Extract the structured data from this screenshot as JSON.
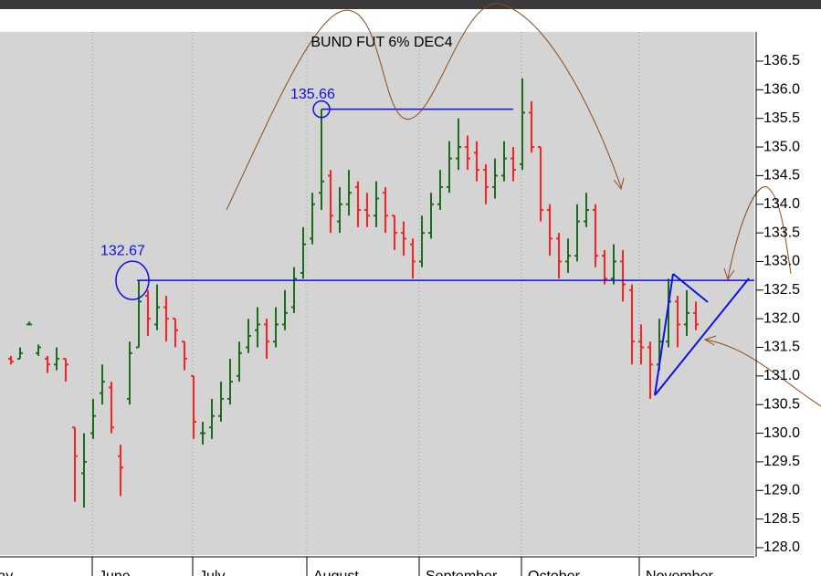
{
  "chart_data": {
    "type": "ohlc",
    "title": "BUND FUT 6% DEC4",
    "up_color": "#1a6e1a",
    "down_color": "#ff2020",
    "annotation_color": "#1010e0",
    "open": [
      131.3,
      131.3,
      131.9,
      131.4,
      131.3,
      131.2,
      131.3,
      130.1,
      129.3,
      130.0,
      130.7,
      130.8,
      129.6,
      130.6,
      131.5,
      132.4,
      131.9,
      132.2,
      132.0,
      131.6,
      131.0,
      130.0,
      130.1,
      130.3,
      130.6,
      131.0,
      131.5,
      131.8,
      131.9,
      131.6,
      131.9,
      132.2,
      132.8,
      133.4,
      134.2,
      134.5,
      133.7,
      134.0,
      134.3,
      133.9,
      133.8,
      134.2,
      133.8,
      133.5,
      133.3,
      133.0,
      133.5,
      134.0,
      134.3,
      134.8,
      135.0,
      134.9,
      134.6,
      134.3,
      134.5,
      134.8,
      134.7,
      135.6,
      135.0,
      133.9,
      133.4,
      133.0,
      133.1,
      133.7,
      133.9,
      133.1,
      132.7,
      133.0,
      132.5,
      131.6,
      131.5,
      131.2,
      131.6,
      132.3,
      131.9,
      132.1
    ],
    "high": [
      131.35,
      131.5,
      131.95,
      131.55,
      131.35,
      131.5,
      131.3,
      130.1,
      130.0,
      130.6,
      131.2,
      130.9,
      129.8,
      131.6,
      132.67,
      132.5,
      132.6,
      132.4,
      132.0,
      131.6,
      131.0,
      130.2,
      130.6,
      130.9,
      131.3,
      131.6,
      132.0,
      132.2,
      132.0,
      132.2,
      132.5,
      132.9,
      133.6,
      134.2,
      135.66,
      134.6,
      134.3,
      134.6,
      134.4,
      134.2,
      134.4,
      134.3,
      133.8,
      133.7,
      133.4,
      133.8,
      134.2,
      134.6,
      135.1,
      135.5,
      135.2,
      135.1,
      134.7,
      134.8,
      135.1,
      135.0,
      136.2,
      135.8,
      135.0,
      134.0,
      133.5,
      133.4,
      134.0,
      134.2,
      134.0,
      133.2,
      133.3,
      133.2,
      132.6,
      131.9,
      131.6,
      132.0,
      132.7,
      132.4,
      132.5,
      132.3
    ],
    "low": [
      131.2,
      131.3,
      131.9,
      131.35,
      131.05,
      131.1,
      130.9,
      128.8,
      128.7,
      129.9,
      130.5,
      130.0,
      128.9,
      130.5,
      131.5,
      131.7,
      131.8,
      131.6,
      131.5,
      131.1,
      129.9,
      129.8,
      129.9,
      130.2,
      130.5,
      130.9,
      131.4,
      131.5,
      131.3,
      131.5,
      131.8,
      132.1,
      132.7,
      133.3,
      133.9,
      133.5,
      133.5,
      133.8,
      133.6,
      133.6,
      133.6,
      133.5,
      133.2,
      133.1,
      132.7,
      132.9,
      133.4,
      133.9,
      134.2,
      134.6,
      134.6,
      134.4,
      134.0,
      134.1,
      134.4,
      134.4,
      134.6,
      134.9,
      133.7,
      133.1,
      132.7,
      132.8,
      133.0,
      133.6,
      132.9,
      132.6,
      132.6,
      132.3,
      131.2,
      131.2,
      130.6,
      131.1,
      131.5,
      131.5,
      131.7,
      131.8
    ],
    "close": [
      131.25,
      131.4,
      131.9,
      131.5,
      131.2,
      131.3,
      131.2,
      129.6,
      129.5,
      130.3,
      130.9,
      130.1,
      129.4,
      131.4,
      132.3,
      132.0,
      132.2,
      132.0,
      131.8,
      131.3,
      130.2,
      130.0,
      130.3,
      130.6,
      130.9,
      131.4,
      131.7,
      131.9,
      131.6,
      131.9,
      132.1,
      132.7,
      133.3,
      134.0,
      134.4,
      133.8,
      134.0,
      134.2,
      133.9,
      133.8,
      134.1,
      133.8,
      133.5,
      133.4,
      133.0,
      133.5,
      134.0,
      134.3,
      134.8,
      135.0,
      134.8,
      134.6,
      134.3,
      134.5,
      134.8,
      134.6,
      135.6,
      135.0,
      133.9,
      133.4,
      133.0,
      133.1,
      133.7,
      133.9,
      133.1,
      132.7,
      133.0,
      132.6,
      131.6,
      131.5,
      131.2,
      131.6,
      132.3,
      131.9,
      132.1,
      131.9
    ],
    "annotations": [
      135.66,
      132.67
    ],
    "xlim": [
      -1.2,
      81.4
    ],
    "xticks": [
      {
        "value": -3.5,
        "label": "May"
      },
      {
        "value": 8.9,
        "label": "June"
      },
      {
        "value": 19.9,
        "label": "July"
      },
      {
        "value": 32.4,
        "label": "August"
      },
      {
        "value": 44.7,
        "label": "September"
      },
      {
        "value": 55.9,
        "label": "October"
      },
      {
        "value": 68.8,
        "label": "November"
      }
    ],
    "ylim": [
      127.84,
      137.01
    ],
    "yticks": [
      {
        "value": 128,
        "label": "128.0"
      },
      128.5,
      {
        "value": 129,
        "label": "129.0"
      },
      129.5,
      {
        "value": 130,
        "label": "130.0"
      },
      130.5,
      {
        "value": 131,
        "label": "131.0"
      },
      131.5,
      {
        "value": 132,
        "label": "132.0"
      },
      132.5,
      {
        "value": 133,
        "label": "133.0"
      },
      133.5,
      {
        "value": 134,
        "label": "134.0"
      },
      134.5,
      {
        "value": 135,
        "label": "135.0"
      },
      135.5,
      {
        "value": 136,
        "label": "136.0"
      },
      136.5
    ],
    "grid": true
  }
}
